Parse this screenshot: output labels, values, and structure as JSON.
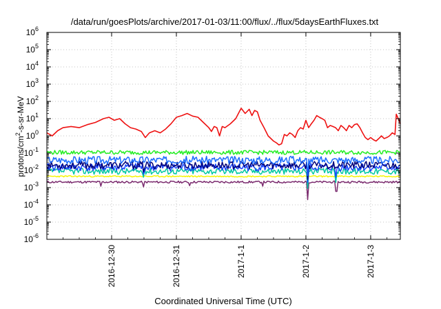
{
  "chart_data": {
    "type": "line",
    "title": "/data/run/goesPlots/archive/2017-01-03/11:00/flux/../flux/5daysEarthFluxes.txt",
    "xlabel": "Coordinated Universal Time (UTC)",
    "ylabel": {
      "base": "protons/cm",
      "sup": "2",
      "rest": "-s-sr-MeV"
    },
    "yscale": "log",
    "ylim": [
      1e-06,
      1000000.0
    ],
    "xlim": [
      "2016-12-29T00:00",
      "2017-01-03T11:00"
    ],
    "grid": true,
    "x_ticks": [
      {
        "label": "2016-12-30",
        "t": "2016-12-30T00:00"
      },
      {
        "label": "2016-12-31",
        "t": "2016-12-31T00:00"
      },
      {
        "label": "2017-1-1",
        "t": "2017-01-01T00:00"
      },
      {
        "label": "2017-1-2",
        "t": "2017-01-02T00:00"
      },
      {
        "label": "2017-1-3",
        "t": "2017-01-03T00:00"
      }
    ],
    "y_ticks": [
      {
        "base": "10",
        "exp": "-6",
        "value": 1e-06
      },
      {
        "base": "10",
        "exp": "-5",
        "value": 1e-05
      },
      {
        "base": "10",
        "exp": "-4",
        "value": 0.0001
      },
      {
        "base": "10",
        "exp": "-3",
        "value": 0.001
      },
      {
        "base": "10",
        "exp": "-2",
        "value": 0.01
      },
      {
        "base": "10",
        "exp": "-1",
        "value": 0.1
      },
      {
        "base": "10",
        "exp": "0",
        "value": 1
      },
      {
        "base": "10",
        "exp": "1",
        "value": 10
      },
      {
        "base": "10",
        "exp": "2",
        "value": 100
      },
      {
        "base": "10",
        "exp": "3",
        "value": 1000
      },
      {
        "base": "10",
        "exp": "4",
        "value": 10000
      },
      {
        "base": "10",
        "exp": "5",
        "value": 100000
      },
      {
        "base": "10",
        "exp": "6",
        "value": 1000000
      }
    ],
    "series": [
      {
        "color": "#7a2a6e",
        "kind": "noisy",
        "base": 0.0021,
        "jitter": 0.06,
        "seed": 11,
        "dips": [
          {
            "t": "2016-12-29T20:00",
            "v": 0.0012
          },
          {
            "t": "2016-12-30T12:00",
            "v": 0.0011
          },
          {
            "t": "2016-12-31T05:00",
            "v": 0.0013
          },
          {
            "t": "2017-01-01T08:00",
            "v": 0.0012
          },
          {
            "t": "2017-01-02T00:30",
            "v": 0.0002
          },
          {
            "t": "2017-01-02T11:00",
            "v": 0.0006
          },
          {
            "t": "2017-01-02T11:20",
            "v": 0.0006
          }
        ]
      },
      {
        "color": "#f5f500",
        "kind": "noisy",
        "base": 0.0045,
        "jitter": 0.04,
        "seed": 23,
        "dips": []
      },
      {
        "color": "#00c8a0",
        "kind": "noisy",
        "base": 0.009,
        "jitter": 0.18,
        "seed": 37,
        "dips": [
          {
            "t": "2016-12-30T12:00",
            "v": 0.004
          },
          {
            "t": "2017-01-02T00:30",
            "v": 0.0009
          },
          {
            "t": "2017-01-02T11:00",
            "v": 0.002
          }
        ]
      },
      {
        "color": "#1846ff",
        "kind": "noisy",
        "base": 0.015,
        "jitter": 0.22,
        "seed": 41,
        "dips": [
          {
            "t": "2016-12-30T12:00",
            "v": 0.006
          },
          {
            "t": "2017-01-02T00:30",
            "v": 0.002
          },
          {
            "t": "2017-01-02T11:00",
            "v": 0.004
          }
        ]
      },
      {
        "color": "#00007a",
        "kind": "noisy",
        "base": 0.02,
        "jitter": 0.22,
        "seed": 53,
        "dips": [
          {
            "t": "2016-12-30T12:00",
            "v": 0.008
          },
          {
            "t": "2017-01-02T00:30",
            "v": 0.003
          }
        ]
      },
      {
        "color": "#1a6cff",
        "kind": "noisy",
        "base": 0.04,
        "jitter": 0.22,
        "seed": 67,
        "dips": [
          {
            "t": "2017-01-02T00:30",
            "v": 0.005
          }
        ]
      },
      {
        "color": "#22ee22",
        "kind": "noisy",
        "base": 0.11,
        "jitter": 0.12,
        "seed": 79,
        "dips": []
      },
      {
        "color": "#ee1111",
        "kind": "key",
        "points": [
          [
            "2016-12-29T00:00",
            1.5
          ],
          [
            "2016-12-29T02:00",
            1.0
          ],
          [
            "2016-12-29T04:00",
            2.0
          ],
          [
            "2016-12-29T06:00",
            3.0
          ],
          [
            "2016-12-29T09:00",
            3.5
          ],
          [
            "2016-12-29T12:00",
            3.0
          ],
          [
            "2016-12-29T15:00",
            4.5
          ],
          [
            "2016-12-29T18:00",
            6.0
          ],
          [
            "2016-12-29T21:00",
            10.0
          ],
          [
            "2016-12-29T23:00",
            12.0
          ],
          [
            "2016-12-30T01:00",
            8.0
          ],
          [
            "2016-12-30T03:00",
            10.0
          ],
          [
            "2016-12-30T05:00",
            5.0
          ],
          [
            "2016-12-30T07:00",
            3.0
          ],
          [
            "2016-12-30T09:00",
            2.5
          ],
          [
            "2016-12-30T11:00",
            1.8
          ],
          [
            "2016-12-30T12:30",
            0.8
          ],
          [
            "2016-12-30T14:00",
            1.5
          ],
          [
            "2016-12-30T16:00",
            2.0
          ],
          [
            "2016-12-30T18:00",
            1.5
          ],
          [
            "2016-12-30T20:00",
            2.5
          ],
          [
            "2016-12-30T22:00",
            5.0
          ],
          [
            "2016-12-31T00:00",
            12.0
          ],
          [
            "2016-12-31T02:00",
            15.0
          ],
          [
            "2016-12-31T04:00",
            20.0
          ],
          [
            "2016-12-31T06:00",
            14.0
          ],
          [
            "2016-12-31T08:00",
            12.0
          ],
          [
            "2016-12-31T10:00",
            6.0
          ],
          [
            "2016-12-31T12:00",
            3.0
          ],
          [
            "2016-12-31T13:00",
            1.8
          ],
          [
            "2016-12-31T14:00",
            3.5
          ],
          [
            "2016-12-31T15:00",
            3.0
          ],
          [
            "2016-12-31T16:00",
            1.0
          ],
          [
            "2016-12-31T17:00",
            3.5
          ],
          [
            "2016-12-31T18:00",
            3.0
          ],
          [
            "2016-12-31T20:00",
            5.0
          ],
          [
            "2016-12-31T22:00",
            10.0
          ],
          [
            "2016-12-31T23:00",
            20.0
          ],
          [
            "2017-01-01T00:00",
            40.0
          ],
          [
            "2017-01-01T01:30",
            20.0
          ],
          [
            "2017-01-01T03:00",
            35.0
          ],
          [
            "2017-01-01T04:00",
            15.0
          ],
          [
            "2017-01-01T05:00",
            30.0
          ],
          [
            "2017-01-01T06:00",
            25.0
          ],
          [
            "2017-01-01T07:00",
            8.0
          ],
          [
            "2017-01-01T08:30",
            3.0
          ],
          [
            "2017-01-01T10:00",
            1.0
          ],
          [
            "2017-01-01T12:00",
            0.5
          ],
          [
            "2017-01-01T13:00",
            0.4
          ],
          [
            "2017-01-01T14:00",
            0.3
          ],
          [
            "2017-01-01T15:00",
            0.35
          ],
          [
            "2017-01-01T16:00",
            1.2
          ],
          [
            "2017-01-01T17:00",
            1.0
          ],
          [
            "2017-01-01T18:00",
            1.5
          ],
          [
            "2017-01-01T19:00",
            1.2
          ],
          [
            "2017-01-01T20:00",
            0.8
          ],
          [
            "2017-01-01T21:00",
            2.0
          ],
          [
            "2017-01-01T22:00",
            3.0
          ],
          [
            "2017-01-01T23:00",
            2.5
          ],
          [
            "2017-01-02T00:00",
            8.0
          ],
          [
            "2017-01-02T01:00",
            3.0
          ],
          [
            "2017-01-02T02:00",
            5.0
          ],
          [
            "2017-01-02T03:00",
            8.0
          ],
          [
            "2017-01-02T04:00",
            15.0
          ],
          [
            "2017-01-02T05:00",
            12.0
          ],
          [
            "2017-01-02T06:00",
            10.0
          ],
          [
            "2017-01-02T07:00",
            8.0
          ],
          [
            "2017-01-02T08:00",
            3.0
          ],
          [
            "2017-01-02T09:00",
            4.0
          ],
          [
            "2017-01-02T10:00",
            3.5
          ],
          [
            "2017-01-02T11:00",
            3.0
          ],
          [
            "2017-01-02T12:00",
            2.0
          ],
          [
            "2017-01-02T13:00",
            4.0
          ],
          [
            "2017-01-02T14:00",
            3.0
          ],
          [
            "2017-01-02T15:00",
            2.0
          ],
          [
            "2017-01-02T16:00",
            4.0
          ],
          [
            "2017-01-02T17:00",
            3.0
          ],
          [
            "2017-01-02T18:00",
            4.5
          ],
          [
            "2017-01-02T19:00",
            5.0
          ],
          [
            "2017-01-02T20:00",
            3.0
          ],
          [
            "2017-01-02T21:00",
            1.5
          ],
          [
            "2017-01-02T22:00",
            0.8
          ],
          [
            "2017-01-02T23:00",
            0.6
          ],
          [
            "2017-01-03T00:00",
            0.8
          ],
          [
            "2017-01-03T01:00",
            0.6
          ],
          [
            "2017-01-03T02:00",
            0.5
          ],
          [
            "2017-01-03T03:00",
            0.7
          ],
          [
            "2017-01-03T04:00",
            1.0
          ],
          [
            "2017-01-03T05:00",
            0.7
          ],
          [
            "2017-01-03T06:00",
            0.8
          ],
          [
            "2017-01-03T07:00",
            1.0
          ],
          [
            "2017-01-03T08:00",
            1.5
          ],
          [
            "2017-01-03T09:00",
            1.2
          ],
          [
            "2017-01-03T09:30",
            18.0
          ],
          [
            "2017-01-03T10:00",
            12.0
          ],
          [
            "2017-01-03T10:30",
            8.0
          ],
          [
            "2017-01-03T11:00",
            5.0
          ]
        ]
      }
    ]
  }
}
